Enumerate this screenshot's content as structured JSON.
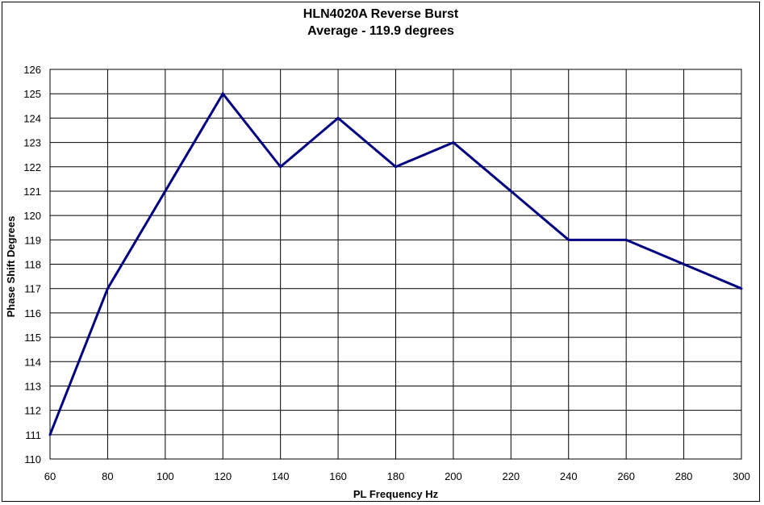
{
  "chart_data": {
    "type": "line",
    "title": "HLN4020A Reverse Burst",
    "subtitle": "Average - 119.9 degrees",
    "xlabel": "PL Frequency Hz",
    "ylabel": "Phase Shift Degrees",
    "xlim": [
      60,
      300
    ],
    "ylim": [
      110,
      126
    ],
    "x_ticks": [
      60,
      80,
      100,
      120,
      140,
      160,
      180,
      200,
      220,
      240,
      260,
      280,
      300
    ],
    "y_ticks": [
      110,
      111,
      112,
      113,
      114,
      115,
      116,
      117,
      118,
      119,
      120,
      121,
      122,
      123,
      124,
      125,
      126
    ],
    "grid": true,
    "legend": "none",
    "series": [
      {
        "color": "#000080",
        "x": [
          60,
          80,
          100,
          120,
          140,
          160,
          180,
          200,
          220,
          240,
          260,
          280,
          300
        ],
        "y": [
          111,
          117,
          121,
          125,
          122,
          124,
          122,
          123,
          121,
          119,
          119,
          118,
          117
        ]
      }
    ]
  }
}
